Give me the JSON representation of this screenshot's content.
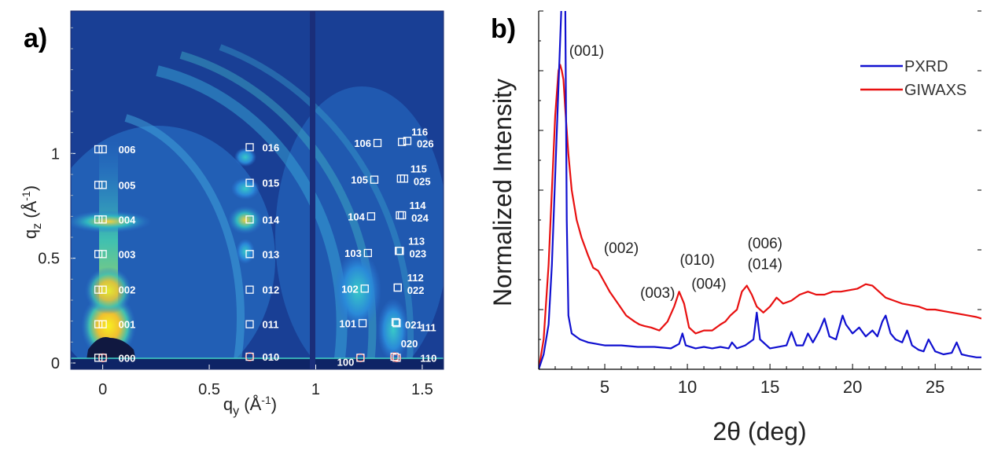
{
  "panels": {
    "a": {
      "label": "a)"
    },
    "b": {
      "label": "b)"
    }
  },
  "colors": {
    "pxrd": "#1010d0",
    "giwaxs": "#e81010",
    "map_background": "#1e4fa8",
    "marker_square": "#ffffff",
    "marker_circle": "#e02020",
    "index_label": "#ffffff"
  },
  "chart_data": [
    {
      "type": "heatmap",
      "title": "",
      "xlabel": "q_y (Å^-1)",
      "ylabel": "q_z (Å^-1)",
      "xlim": [
        -0.15,
        1.6
      ],
      "ylim": [
        -0.03,
        1.68
      ],
      "x_ticks": [
        0,
        0.5,
        1,
        1.5
      ],
      "x_tick_labels": [
        "0",
        "0.5",
        "1",
        "1.5"
      ],
      "y_ticks": [
        0,
        0.5,
        1
      ],
      "y_tick_labels": [
        "0",
        "0.5",
        "1"
      ],
      "colormap": "parula",
      "indexed_reflections": [
        {
          "hkl": "000",
          "qy": 0.0,
          "qz": 0.025
        },
        {
          "hkl": "001",
          "qy": 0.0,
          "qz": 0.185
        },
        {
          "hkl": "002",
          "qy": 0.0,
          "qz": 0.35
        },
        {
          "hkl": "003",
          "qy": 0.0,
          "qz": 0.52
        },
        {
          "hkl": "004",
          "qy": 0.0,
          "qz": 0.685
        },
        {
          "hkl": "005",
          "qy": 0.0,
          "qz": 0.85
        },
        {
          "hkl": "006",
          "qy": 0.0,
          "qz": 1.02
        },
        {
          "hkl": "010",
          "qy": 0.69,
          "qz": 0.03
        },
        {
          "hkl": "011",
          "qy": 0.69,
          "qz": 0.185
        },
        {
          "hkl": "012",
          "qy": 0.69,
          "qz": 0.35
        },
        {
          "hkl": "013",
          "qy": 0.69,
          "qz": 0.52
        },
        {
          "hkl": "014",
          "qy": 0.69,
          "qz": 0.685
        },
        {
          "hkl": "015",
          "qy": 0.69,
          "qz": 0.86
        },
        {
          "hkl": "016",
          "qy": 0.69,
          "qz": 1.03
        },
        {
          "hkl": "100",
          "qy": 1.21,
          "qz": 0.025
        },
        {
          "hkl": "101",
          "qy": 1.22,
          "qz": 0.19
        },
        {
          "hkl": "102",
          "qy": 1.23,
          "qz": 0.355
        },
        {
          "hkl": "103",
          "qy": 1.245,
          "qz": 0.525
        },
        {
          "hkl": "104",
          "qy": 1.26,
          "qz": 0.7
        },
        {
          "hkl": "105",
          "qy": 1.275,
          "qz": 0.875
        },
        {
          "hkl": "106",
          "qy": 1.29,
          "qz": 1.05
        },
        {
          "hkl": "110",
          "qy": 1.38,
          "qz": 0.025
        },
        {
          "hkl": "111",
          "qy": 1.38,
          "qz": 0.19
        },
        {
          "hkl": "112",
          "qy": 1.385,
          "qz": 0.36
        },
        {
          "hkl": "113",
          "qy": 1.39,
          "qz": 0.535
        },
        {
          "hkl": "114",
          "qy": 1.395,
          "qz": 0.705
        },
        {
          "hkl": "115",
          "qy": 1.4,
          "qz": 0.88
        },
        {
          "hkl": "116",
          "qy": 1.405,
          "qz": 1.055
        },
        {
          "hkl": "020",
          "qy": 1.37,
          "qz": 0.03
        },
        {
          "hkl": "021",
          "qy": 1.375,
          "qz": 0.195
        },
        {
          "hkl": "022",
          "qy": 1.385,
          "qz": 0.36
        },
        {
          "hkl": "023",
          "qy": 1.395,
          "qz": 0.535
        },
        {
          "hkl": "024",
          "qy": 1.405,
          "qz": 0.705
        },
        {
          "hkl": "025",
          "qy": 1.415,
          "qz": 0.88
        },
        {
          "hkl": "026",
          "qy": 1.43,
          "qz": 1.06
        }
      ]
    },
    {
      "type": "line",
      "title": "",
      "xlabel": "2θ (deg)",
      "ylabel": "Normalized Intensity",
      "xlim": [
        1,
        27.8
      ],
      "ylim": [
        0,
        1.2
      ],
      "x_ticks": [
        5,
        10,
        15,
        20,
        25
      ],
      "x_tick_labels": [
        "5",
        "10",
        "15",
        "20",
        "25"
      ],
      "legend_position": "top-right",
      "series": [
        {
          "name": "PXRD",
          "color": "#1010d0",
          "x": [
            1.0,
            1.3,
            1.6,
            1.8,
            2.0,
            2.2,
            2.4,
            2.6,
            2.7,
            2.8,
            3.0,
            3.5,
            4.0,
            5.0,
            6.0,
            7.0,
            8.0,
            9.0,
            9.5,
            9.7,
            9.9,
            10.5,
            11.0,
            11.5,
            12.0,
            12.5,
            12.7,
            13.0,
            13.5,
            14.0,
            14.2,
            14.4,
            15.0,
            16.0,
            16.3,
            16.6,
            17.0,
            17.3,
            17.6,
            18.0,
            18.3,
            18.6,
            19.0,
            19.4,
            19.6,
            20.0,
            20.4,
            20.8,
            21.2,
            21.5,
            21.8,
            22.0,
            22.3,
            22.6,
            23.0,
            23.3,
            23.6,
            24.0,
            24.3,
            24.6,
            25.0,
            25.5,
            26.0,
            26.3,
            26.6,
            27.0,
            27.5,
            27.8
          ],
          "y": [
            0.0,
            0.05,
            0.15,
            0.35,
            0.65,
            0.95,
            1.25,
            1.3,
            0.5,
            0.18,
            0.12,
            0.1,
            0.09,
            0.08,
            0.08,
            0.075,
            0.075,
            0.07,
            0.085,
            0.12,
            0.08,
            0.07,
            0.075,
            0.07,
            0.075,
            0.07,
            0.09,
            0.07,
            0.08,
            0.1,
            0.19,
            0.1,
            0.07,
            0.08,
            0.125,
            0.08,
            0.08,
            0.12,
            0.09,
            0.13,
            0.17,
            0.11,
            0.1,
            0.18,
            0.15,
            0.12,
            0.14,
            0.11,
            0.13,
            0.11,
            0.16,
            0.18,
            0.12,
            0.1,
            0.09,
            0.13,
            0.08,
            0.065,
            0.06,
            0.1,
            0.06,
            0.05,
            0.055,
            0.09,
            0.05,
            0.045,
            0.04,
            0.04
          ]
        },
        {
          "name": "GIWAXS",
          "color": "#e81010",
          "x": [
            1.0,
            1.3,
            1.6,
            1.8,
            2.0,
            2.2,
            2.3,
            2.4,
            2.5,
            2.6,
            2.8,
            3.0,
            3.3,
            3.6,
            4.0,
            4.3,
            4.6,
            4.9,
            5.3,
            5.8,
            6.3,
            6.8,
            7.1,
            7.4,
            7.8,
            8.3,
            8.8,
            9.2,
            9.5,
            9.8,
            10.1,
            10.5,
            11.0,
            11.5,
            12.0,
            12.3,
            12.6,
            13.0,
            13.3,
            13.6,
            13.9,
            14.2,
            14.6,
            15.0,
            15.4,
            15.8,
            16.3,
            16.8,
            17.3,
            17.8,
            18.3,
            18.8,
            19.3,
            19.8,
            20.3,
            20.8,
            21.2,
            21.6,
            22.0,
            22.5,
            23.0,
            23.5,
            24.0,
            24.5,
            25.0,
            25.5,
            26.0,
            26.5,
            27.0,
            27.5,
            27.8
          ],
          "y": [
            0.0,
            0.1,
            0.35,
            0.6,
            0.85,
            1.0,
            1.02,
            1.0,
            0.97,
            0.88,
            0.72,
            0.6,
            0.5,
            0.44,
            0.38,
            0.34,
            0.33,
            0.3,
            0.26,
            0.22,
            0.18,
            0.16,
            0.15,
            0.145,
            0.14,
            0.13,
            0.16,
            0.21,
            0.26,
            0.22,
            0.14,
            0.12,
            0.13,
            0.13,
            0.15,
            0.16,
            0.18,
            0.2,
            0.26,
            0.28,
            0.25,
            0.21,
            0.19,
            0.21,
            0.24,
            0.22,
            0.23,
            0.25,
            0.26,
            0.25,
            0.25,
            0.26,
            0.26,
            0.265,
            0.27,
            0.285,
            0.28,
            0.26,
            0.24,
            0.23,
            0.22,
            0.215,
            0.21,
            0.2,
            0.2,
            0.195,
            0.19,
            0.185,
            0.18,
            0.175,
            0.17
          ]
        }
      ],
      "annotations": [
        "(001)",
        "(002)",
        "(003)",
        "(010)",
        "(004)",
        "(006)",
        "(014)"
      ]
    }
  ]
}
